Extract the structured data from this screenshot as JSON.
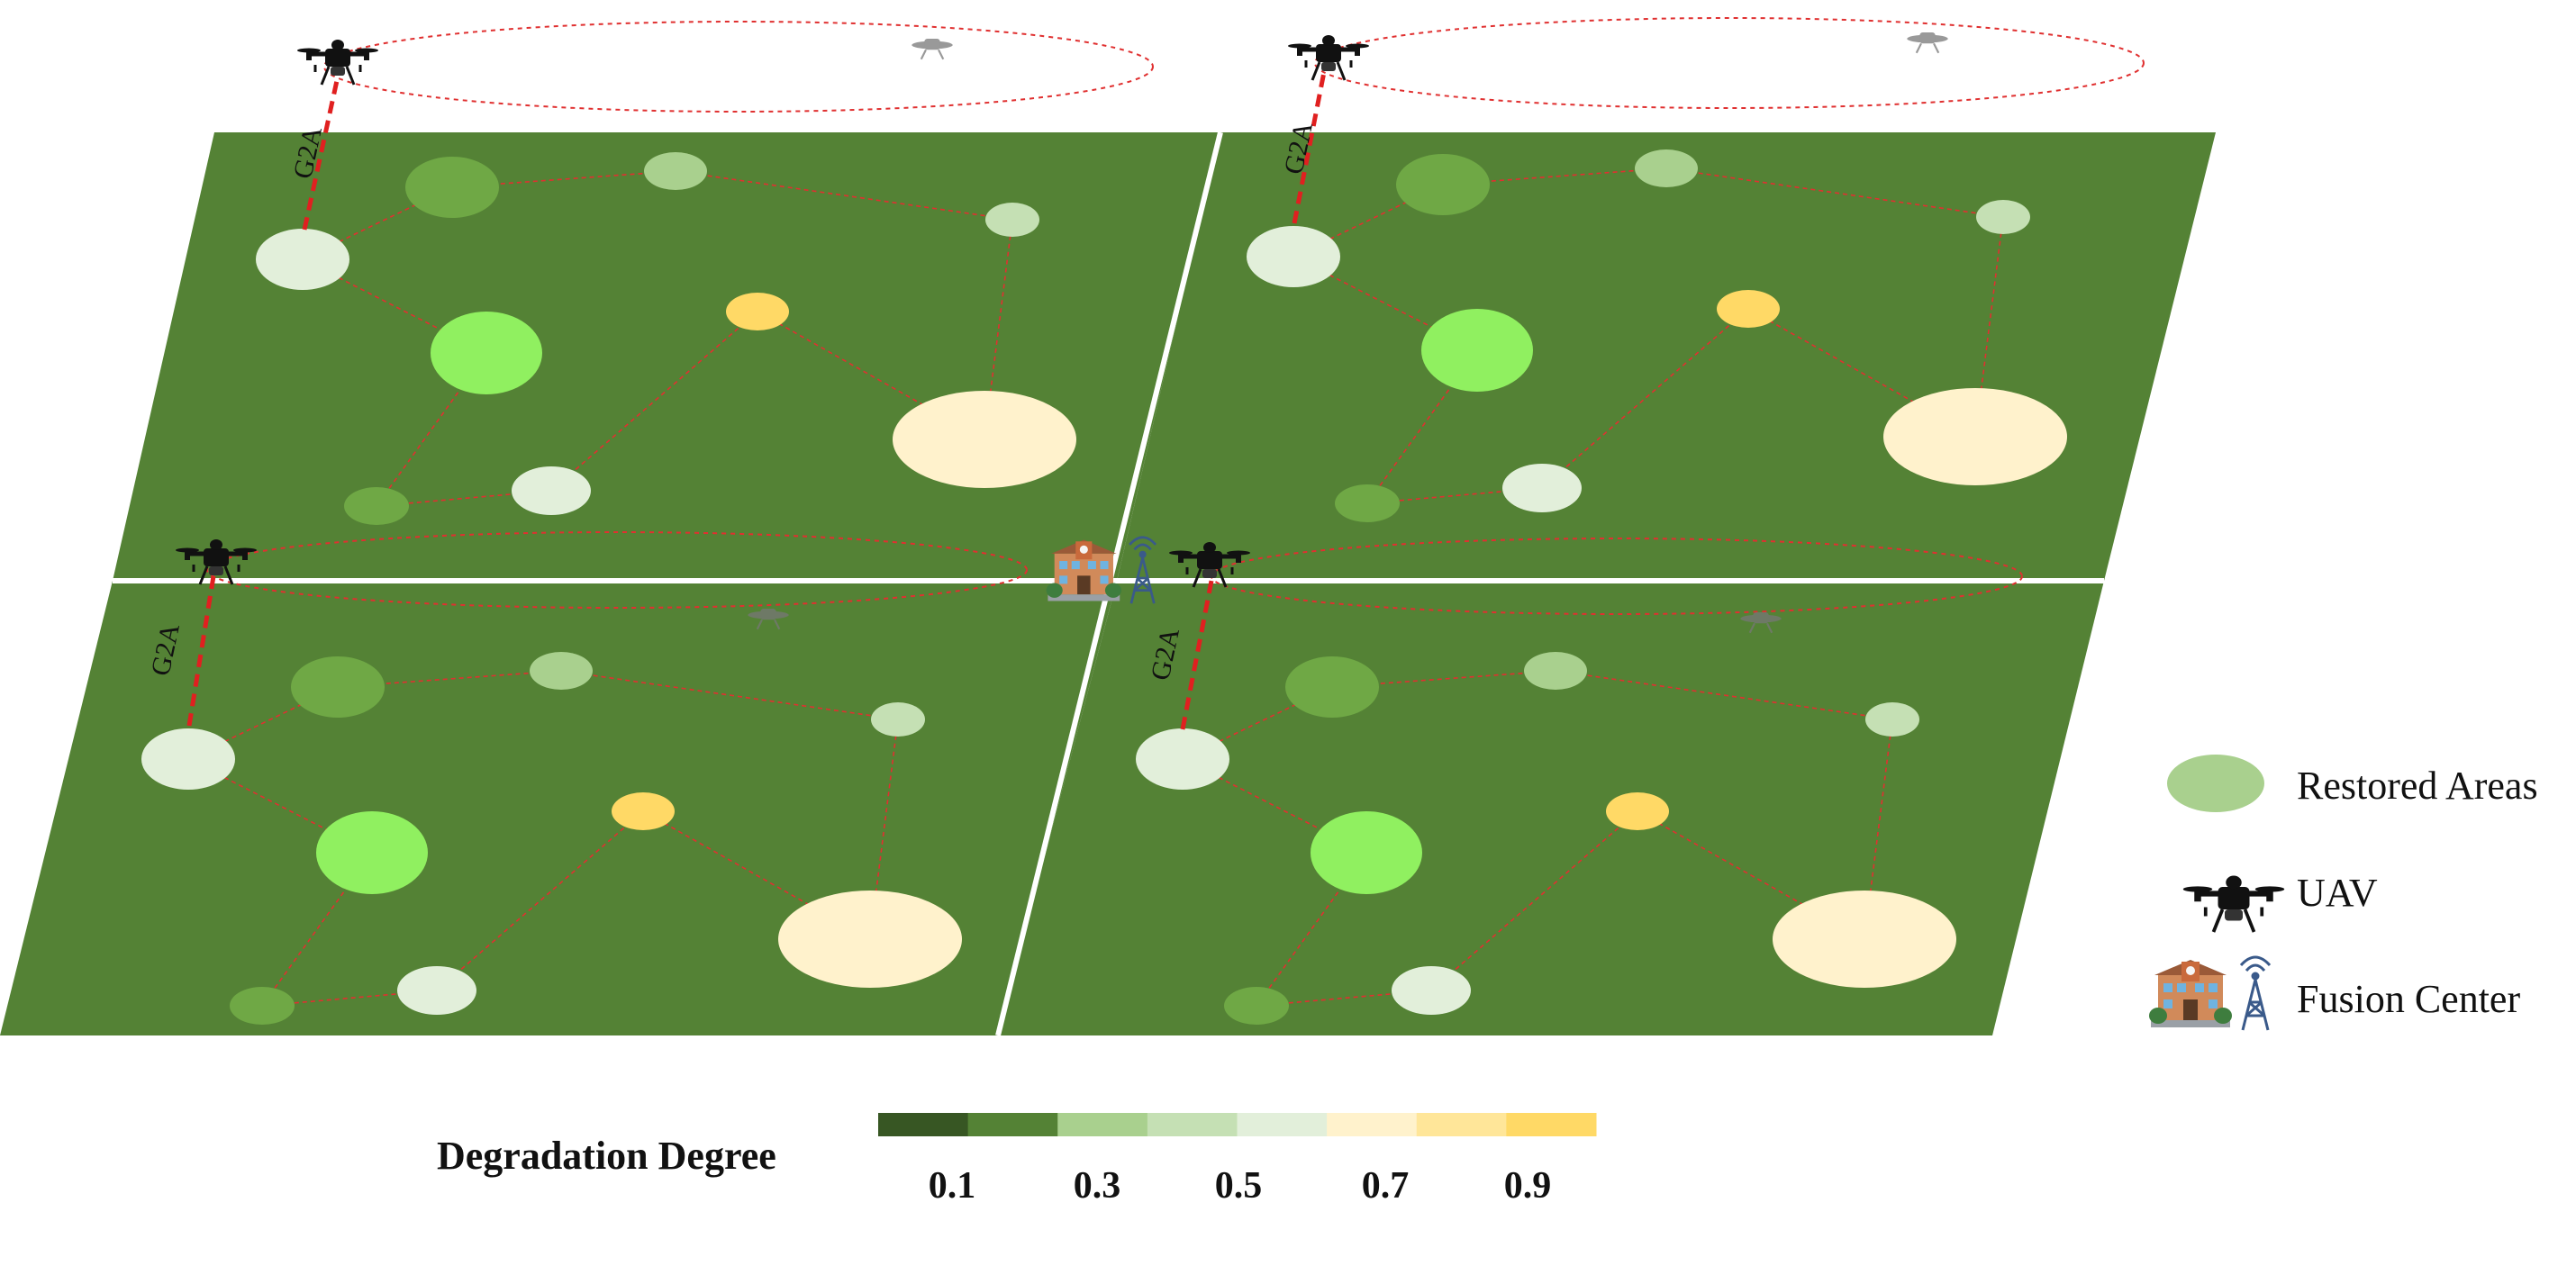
{
  "diagram": {
    "link_label": "G2A",
    "colors": {
      "field": "#548235",
      "divider": "#ffffff",
      "link": "#e02020",
      "route": "#e03030"
    },
    "node_colors": {
      "n1": "#6fa845",
      "n2": "#a9d08e",
      "n3": "#c5e0b4",
      "n4": "#e2efda",
      "n5": "#90f060",
      "n6": "#ffd966",
      "n7": "#fff2cc",
      "n8": "#e2efda",
      "n9": "#6fa845"
    }
  },
  "legend": {
    "restored_areas": {
      "label": "Restored Areas",
      "color": "#a9d08e"
    },
    "uav": {
      "label": "UAV",
      "icon": "drone-icon"
    },
    "fusion_center": {
      "label": "Fusion Center",
      "icon": "building-tower-icon"
    }
  },
  "colorbar": {
    "title": "Degradation Degree",
    "colors": [
      "#375623",
      "#548235",
      "#a9d08e",
      "#c5e0b4",
      "#e2efda",
      "#fff2cc",
      "#ffe699",
      "#ffd966"
    ],
    "tick_labels": [
      "0.1",
      "0.3",
      "0.5",
      "0.7",
      "0.9"
    ]
  }
}
